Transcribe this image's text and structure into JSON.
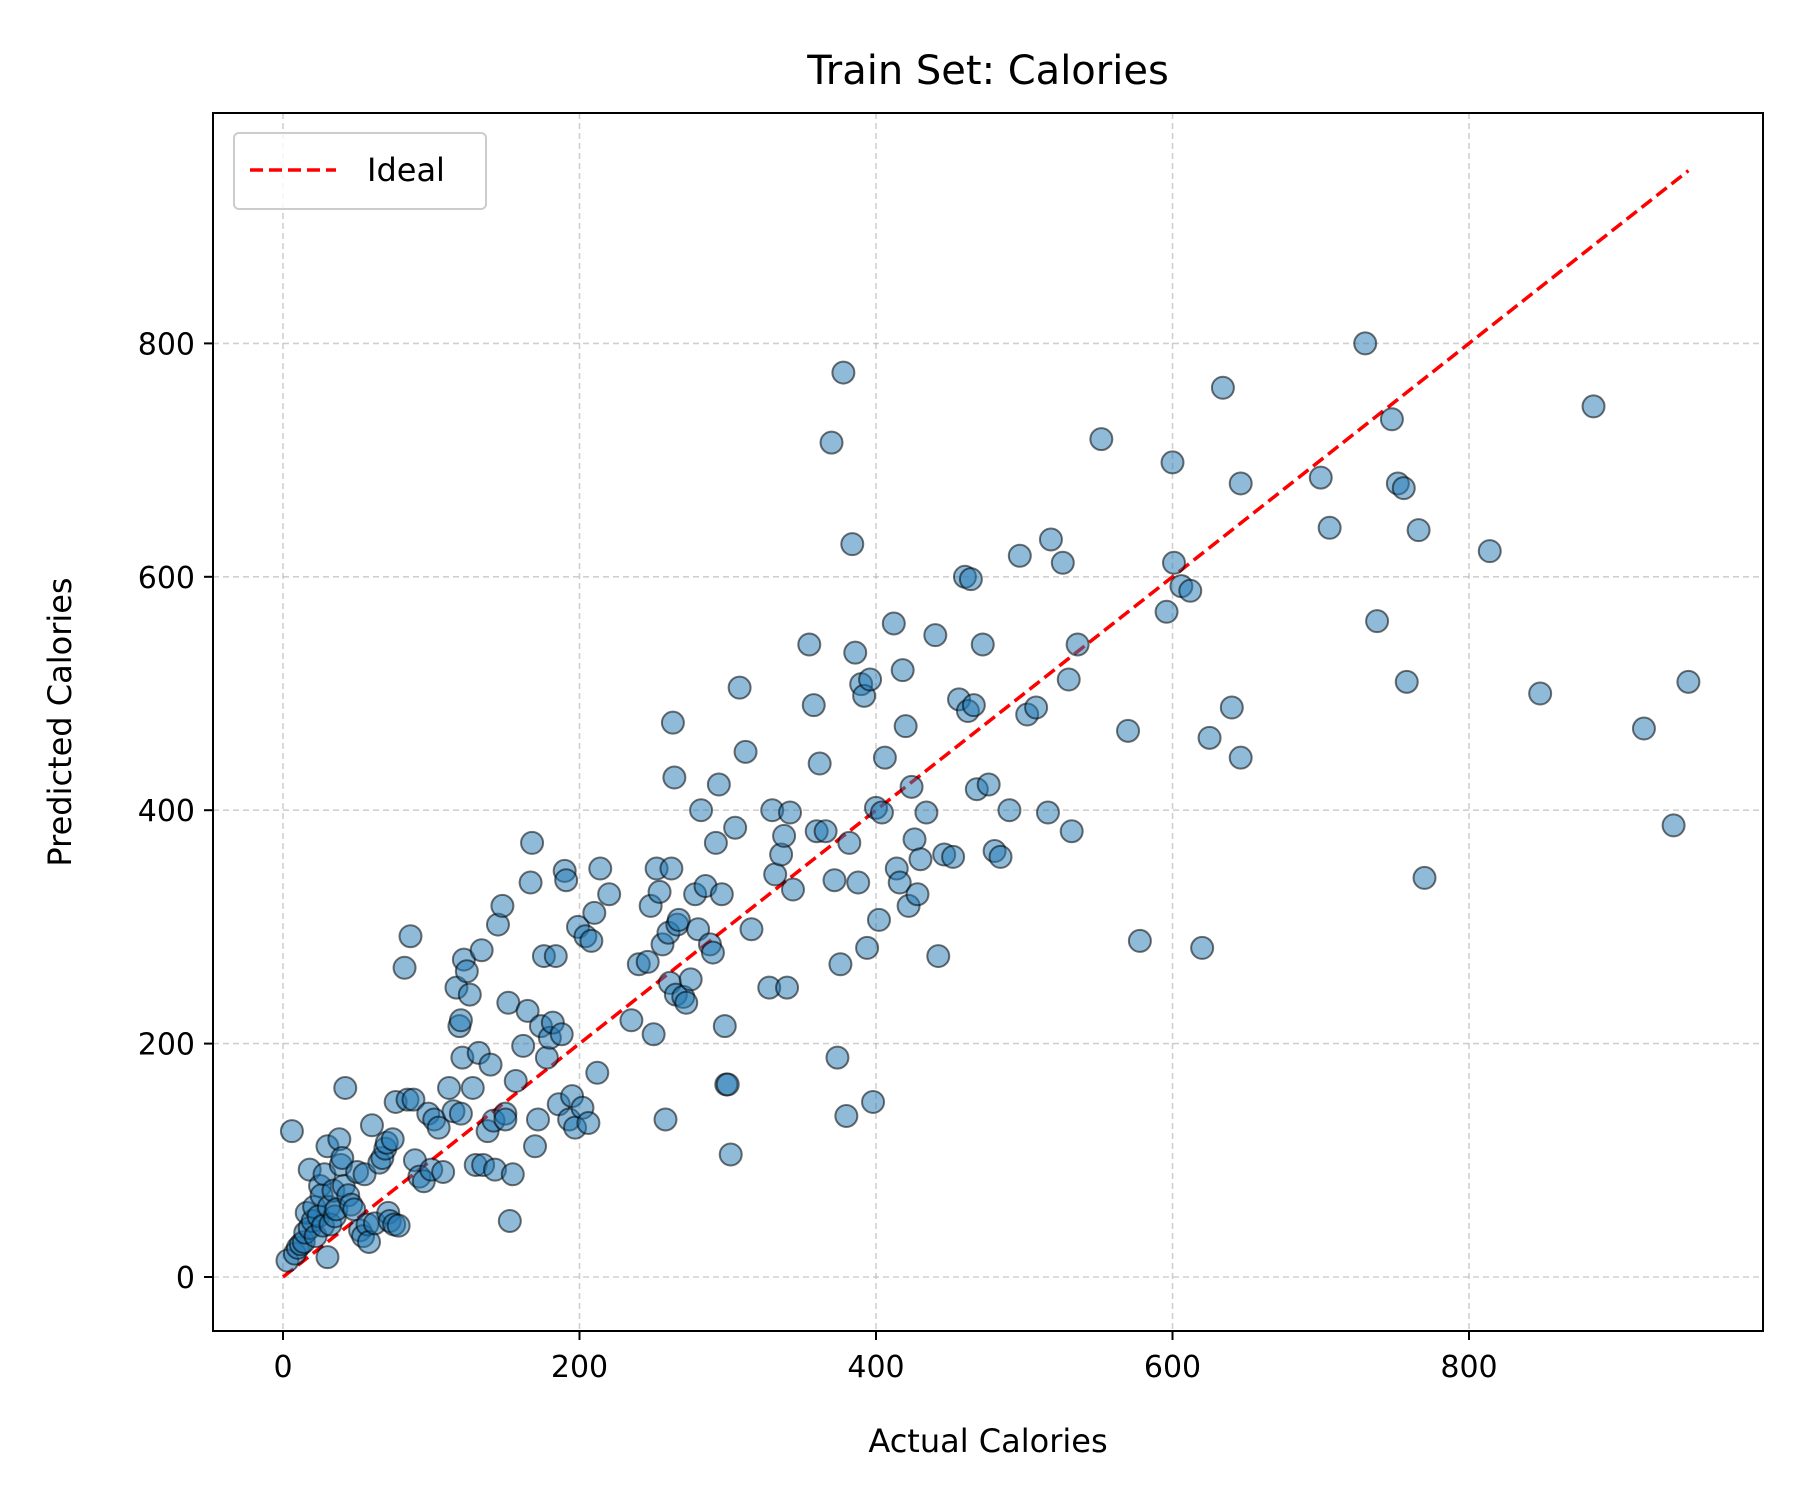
{
  "chart_data": {
    "type": "scatter",
    "title": "Train Set: Calories",
    "xlabel": "Actual Calories",
    "ylabel": "Predicted Calories",
    "xlim": [
      -60,
      1000
    ],
    "ylim": [
      -50,
      1000
    ],
    "xticks": [
      "0",
      "200",
      "400",
      "600",
      "800"
    ],
    "yticks": [
      "0",
      "200",
      "400",
      "600",
      "800"
    ],
    "grid": true,
    "legend_position": "top-left",
    "series": [
      {
        "kind": "points",
        "color": "#1f77b4",
        "alpha": 0.5,
        "edge_color": "#000000",
        "points": [
          [
            3,
            14
          ],
          [
            6,
            125
          ],
          [
            8,
            20
          ],
          [
            10,
            25
          ],
          [
            12,
            28
          ],
          [
            14,
            30
          ],
          [
            15,
            38
          ],
          [
            16,
            55
          ],
          [
            18,
            42
          ],
          [
            18,
            92
          ],
          [
            20,
            48
          ],
          [
            21,
            60
          ],
          [
            22,
            35
          ],
          [
            24,
            52
          ],
          [
            25,
            78
          ],
          [
            26,
            70
          ],
          [
            27,
            44
          ],
          [
            28,
            88
          ],
          [
            30,
            112
          ],
          [
            30,
            17
          ],
          [
            31,
            60
          ],
          [
            32,
            45
          ],
          [
            34,
            74
          ],
          [
            35,
            52
          ],
          [
            36,
            58
          ],
          [
            38,
            118
          ],
          [
            39,
            96
          ],
          [
            40,
            102
          ],
          [
            41,
            78
          ],
          [
            42,
            162
          ],
          [
            44,
            70
          ],
          [
            46,
            62
          ],
          [
            48,
            58
          ],
          [
            50,
            90
          ],
          [
            52,
            40
          ],
          [
            54,
            35
          ],
          [
            55,
            88
          ],
          [
            57,
            45
          ],
          [
            58,
            30
          ],
          [
            60,
            130
          ],
          [
            62,
            46
          ],
          [
            65,
            98
          ],
          [
            67,
            102
          ],
          [
            69,
            110
          ],
          [
            70,
            115
          ],
          [
            71,
            55
          ],
          [
            72,
            48
          ],
          [
            74,
            118
          ],
          [
            75,
            45
          ],
          [
            76,
            150
          ],
          [
            78,
            44
          ],
          [
            82,
            265
          ],
          [
            84,
            152
          ],
          [
            86,
            292
          ],
          [
            88,
            152
          ],
          [
            89,
            100
          ],
          [
            92,
            86
          ],
          [
            95,
            82
          ],
          [
            98,
            140
          ],
          [
            100,
            92
          ],
          [
            102,
            135
          ],
          [
            105,
            128
          ],
          [
            108,
            90
          ],
          [
            112,
            162
          ],
          [
            115,
            142
          ],
          [
            117,
            248
          ],
          [
            119,
            215
          ],
          [
            120,
            220
          ],
          [
            120,
            140
          ],
          [
            121,
            188
          ],
          [
            122,
            272
          ],
          [
            124,
            262
          ],
          [
            126,
            242
          ],
          [
            128,
            162
          ],
          [
            130,
            96
          ],
          [
            132,
            192
          ],
          [
            134,
            280
          ],
          [
            135,
            96
          ],
          [
            138,
            125
          ],
          [
            140,
            182
          ],
          [
            142,
            134
          ],
          [
            143,
            92
          ],
          [
            145,
            302
          ],
          [
            148,
            318
          ],
          [
            150,
            140
          ],
          [
            150,
            135
          ],
          [
            152,
            235
          ],
          [
            153,
            48
          ],
          [
            155,
            88
          ],
          [
            157,
            168
          ],
          [
            162,
            198
          ],
          [
            165,
            228
          ],
          [
            167,
            338
          ],
          [
            168,
            372
          ],
          [
            170,
            112
          ],
          [
            172,
            135
          ],
          [
            174,
            215
          ],
          [
            176,
            275
          ],
          [
            178,
            188
          ],
          [
            180,
            205
          ],
          [
            182,
            218
          ],
          [
            184,
            275
          ],
          [
            186,
            148
          ],
          [
            188,
            208
          ],
          [
            190,
            348
          ],
          [
            191,
            340
          ],
          [
            193,
            135
          ],
          [
            195,
            155
          ],
          [
            197,
            128
          ],
          [
            199,
            300
          ],
          [
            202,
            145
          ],
          [
            204,
            292
          ],
          [
            206,
            132
          ],
          [
            208,
            288
          ],
          [
            210,
            312
          ],
          [
            212,
            175
          ],
          [
            214,
            350
          ],
          [
            220,
            328
          ],
          [
            235,
            220
          ],
          [
            240,
            268
          ],
          [
            246,
            270
          ],
          [
            248,
            318
          ],
          [
            250,
            208
          ],
          [
            252,
            350
          ],
          [
            254,
            330
          ],
          [
            256,
            285
          ],
          [
            258,
            135
          ],
          [
            260,
            295
          ],
          [
            261,
            252
          ],
          [
            262,
            350
          ],
          [
            263,
            475
          ],
          [
            264,
            428
          ],
          [
            265,
            242
          ],
          [
            266,
            302
          ],
          [
            267,
            306
          ],
          [
            270,
            240
          ],
          [
            272,
            235
          ],
          [
            275,
            255
          ],
          [
            278,
            328
          ],
          [
            280,
            298
          ],
          [
            282,
            400
          ],
          [
            285,
            335
          ],
          [
            288,
            285
          ],
          [
            290,
            278
          ],
          [
            292,
            372
          ],
          [
            294,
            422
          ],
          [
            296,
            328
          ],
          [
            298,
            215
          ],
          [
            299,
            165
          ],
          [
            300,
            165
          ],
          [
            302,
            105
          ],
          [
            305,
            385
          ],
          [
            308,
            505
          ],
          [
            312,
            450
          ],
          [
            316,
            298
          ],
          [
            328,
            248
          ],
          [
            330,
            400
          ],
          [
            332,
            345
          ],
          [
            336,
            362
          ],
          [
            338,
            378
          ],
          [
            340,
            248
          ],
          [
            342,
            398
          ],
          [
            344,
            332
          ],
          [
            355,
            542
          ],
          [
            358,
            490
          ],
          [
            360,
            382
          ],
          [
            362,
            440
          ],
          [
            366,
            382
          ],
          [
            370,
            715
          ],
          [
            372,
            340
          ],
          [
            374,
            188
          ],
          [
            376,
            268
          ],
          [
            378,
            775
          ],
          [
            380,
            138
          ],
          [
            382,
            372
          ],
          [
            384,
            628
          ],
          [
            386,
            535
          ],
          [
            388,
            338
          ],
          [
            390,
            508
          ],
          [
            392,
            498
          ],
          [
            394,
            282
          ],
          [
            396,
            512
          ],
          [
            398,
            150
          ],
          [
            400,
            402
          ],
          [
            402,
            306
          ],
          [
            404,
            398
          ],
          [
            406,
            445
          ],
          [
            412,
            560
          ],
          [
            414,
            350
          ],
          [
            416,
            338
          ],
          [
            418,
            520
          ],
          [
            420,
            472
          ],
          [
            422,
            318
          ],
          [
            424,
            420
          ],
          [
            426,
            375
          ],
          [
            428,
            328
          ],
          [
            430,
            358
          ],
          [
            434,
            398
          ],
          [
            440,
            550
          ],
          [
            442,
            275
          ],
          [
            446,
            362
          ],
          [
            452,
            360
          ],
          [
            456,
            495
          ],
          [
            460,
            600
          ],
          [
            462,
            485
          ],
          [
            464,
            598
          ],
          [
            466,
            490
          ],
          [
            468,
            418
          ],
          [
            472,
            542
          ],
          [
            476,
            422
          ],
          [
            480,
            365
          ],
          [
            484,
            360
          ],
          [
            490,
            400
          ],
          [
            497,
            618
          ],
          [
            502,
            482
          ],
          [
            508,
            488
          ],
          [
            516,
            398
          ],
          [
            518,
            632
          ],
          [
            526,
            612
          ],
          [
            530,
            512
          ],
          [
            532,
            382
          ],
          [
            536,
            542
          ],
          [
            552,
            718
          ],
          [
            570,
            468
          ],
          [
            578,
            288
          ],
          [
            596,
            570
          ],
          [
            600,
            698
          ],
          [
            601,
            612
          ],
          [
            606,
            592
          ],
          [
            612,
            588
          ],
          [
            620,
            282
          ],
          [
            625,
            462
          ],
          [
            634,
            762
          ],
          [
            640,
            488
          ],
          [
            646,
            680
          ],
          [
            646,
            445
          ],
          [
            700,
            685
          ],
          [
            706,
            642
          ],
          [
            730,
            800
          ],
          [
            738,
            562
          ],
          [
            748,
            735
          ],
          [
            752,
            680
          ],
          [
            756,
            676
          ],
          [
            758,
            510
          ],
          [
            766,
            640
          ],
          [
            770,
            342
          ],
          [
            814,
            622
          ],
          [
            848,
            500
          ],
          [
            884,
            746
          ],
          [
            918,
            470
          ],
          [
            938,
            387
          ],
          [
            948,
            510
          ]
        ]
      },
      {
        "kind": "line",
        "name": "Ideal",
        "color": "#ff0000",
        "dash": "dashed",
        "points": [
          [
            0,
            0
          ],
          [
            948,
            948
          ]
        ]
      }
    ]
  }
}
